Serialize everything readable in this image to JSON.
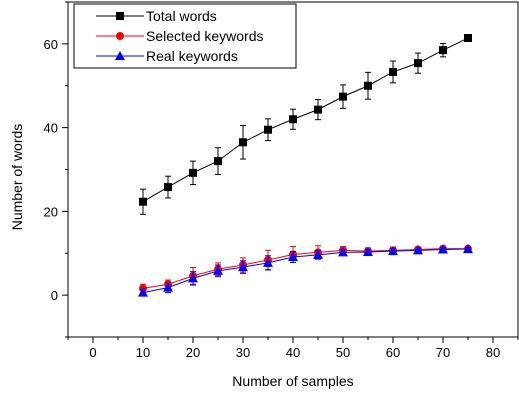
{
  "chart_data": {
    "type": "line",
    "xlabel": "Number of samples",
    "ylabel": "Number of words",
    "xlim": [
      -5,
      85
    ],
    "ylim": [
      -10,
      70
    ],
    "xticks": [
      "0",
      "10",
      "20",
      "30",
      "40",
      "50",
      "60",
      "70",
      "80"
    ],
    "yticks": [
      "0",
      "20",
      "40",
      "60"
    ],
    "grid": false,
    "legend_position": "top-left",
    "x": [
      10,
      15,
      20,
      25,
      30,
      35,
      40,
      45,
      50,
      55,
      60,
      65,
      70,
      75
    ],
    "series": [
      {
        "name": "Total words",
        "color": "#000000",
        "marker": "square",
        "values": [
          22.3,
          25.8,
          29.2,
          32.0,
          36.5,
          39.5,
          42.0,
          44.3,
          47.4,
          50.0,
          53.3,
          55.4,
          58.5,
          61.4
        ],
        "errors": [
          3.0,
          2.6,
          2.8,
          3.2,
          4.0,
          2.6,
          2.4,
          2.4,
          2.8,
          3.2,
          2.6,
          2.4,
          1.6,
          0.4
        ]
      },
      {
        "name": "Selected keywords",
        "color": "#ff0000",
        "marker": "circle",
        "values": [
          1.6,
          2.6,
          4.6,
          6.2,
          7.2,
          8.4,
          9.7,
          10.2,
          10.7,
          10.5,
          10.7,
          10.9,
          11.1,
          11.1
        ],
        "errors": [
          1.0,
          1.0,
          2.0,
          1.5,
          1.7,
          2.3,
          1.9,
          1.6,
          0.9,
          0.8,
          0.8,
          0.6,
          0.6,
          0.5
        ]
      },
      {
        "name": "Real keywords",
        "color": "#0000ff",
        "marker": "triangle",
        "values": [
          0.6,
          1.8,
          4.0,
          5.8,
          6.7,
          7.7,
          9.1,
          9.6,
          10.2,
          10.3,
          10.5,
          10.7,
          10.9,
          11.0
        ],
        "errors": [
          0.8,
          1.2,
          1.6,
          1.4,
          1.5,
          1.7,
          1.3,
          1.0,
          0.7,
          0.6,
          0.6,
          0.5,
          0.5,
          0.4
        ]
      }
    ]
  }
}
